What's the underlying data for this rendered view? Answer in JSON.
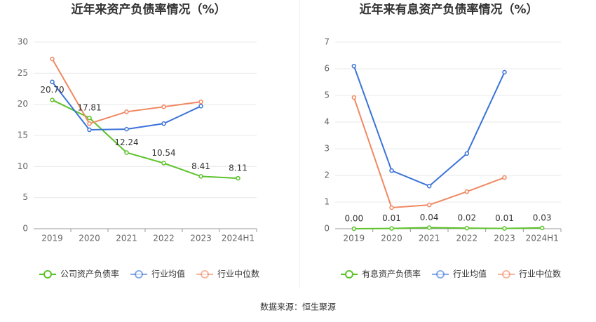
{
  "chart_data": [
    {
      "type": "line",
      "title": "近年来资产负债率情况（%）",
      "categories": [
        "2019",
        "2020",
        "2021",
        "2022",
        "2023",
        "2024H1"
      ],
      "series": [
        {
          "name": "公司资产负债率",
          "color": "#5cc22a",
          "values": [
            20.7,
            17.81,
            12.24,
            10.54,
            8.41,
            8.11
          ],
          "value_labels": [
            "20.70",
            "17.81",
            "12.24",
            "10.54",
            "8.41",
            "8.11"
          ]
        },
        {
          "name": "行业均值",
          "color": "#3b73d9",
          "values": [
            23.6,
            15.9,
            16.0,
            16.9,
            19.7,
            null
          ]
        },
        {
          "name": "行业中位数",
          "color": "#f08862",
          "values": [
            27.3,
            16.9,
            18.8,
            19.6,
            20.4,
            null
          ]
        }
      ],
      "ylim": [
        0,
        30
      ],
      "yticks": [
        0,
        5,
        10,
        15,
        20,
        25,
        30
      ],
      "grid": true,
      "legend": "bottom"
    },
    {
      "type": "line",
      "title": "近年来有息资产负债率情况（%）",
      "categories": [
        "2019",
        "2020",
        "2021",
        "2022",
        "2023",
        "2024H1"
      ],
      "series": [
        {
          "name": "有息资产负债率",
          "color": "#5cc22a",
          "values": [
            0,
            0.01,
            0.04,
            0.02,
            0.01,
            0.03
          ],
          "value_labels": [
            "0.00",
            "0.01",
            "0.04",
            "0.02",
            "0.01",
            "0.03"
          ]
        },
        {
          "name": "行业均值",
          "color": "#3b73d9",
          "values": [
            6.1,
            2.18,
            1.6,
            2.82,
            5.87,
            null
          ]
        },
        {
          "name": "行业中位数",
          "color": "#f08862",
          "values": [
            4.92,
            0.79,
            0.89,
            1.39,
            1.92,
            null
          ]
        }
      ],
      "ylim": [
        0,
        7
      ],
      "yticks": [
        0,
        1,
        2,
        3,
        4,
        5,
        6,
        7
      ],
      "grid": true,
      "legend": "bottom"
    }
  ],
  "source": "数据来源：恒生聚源"
}
